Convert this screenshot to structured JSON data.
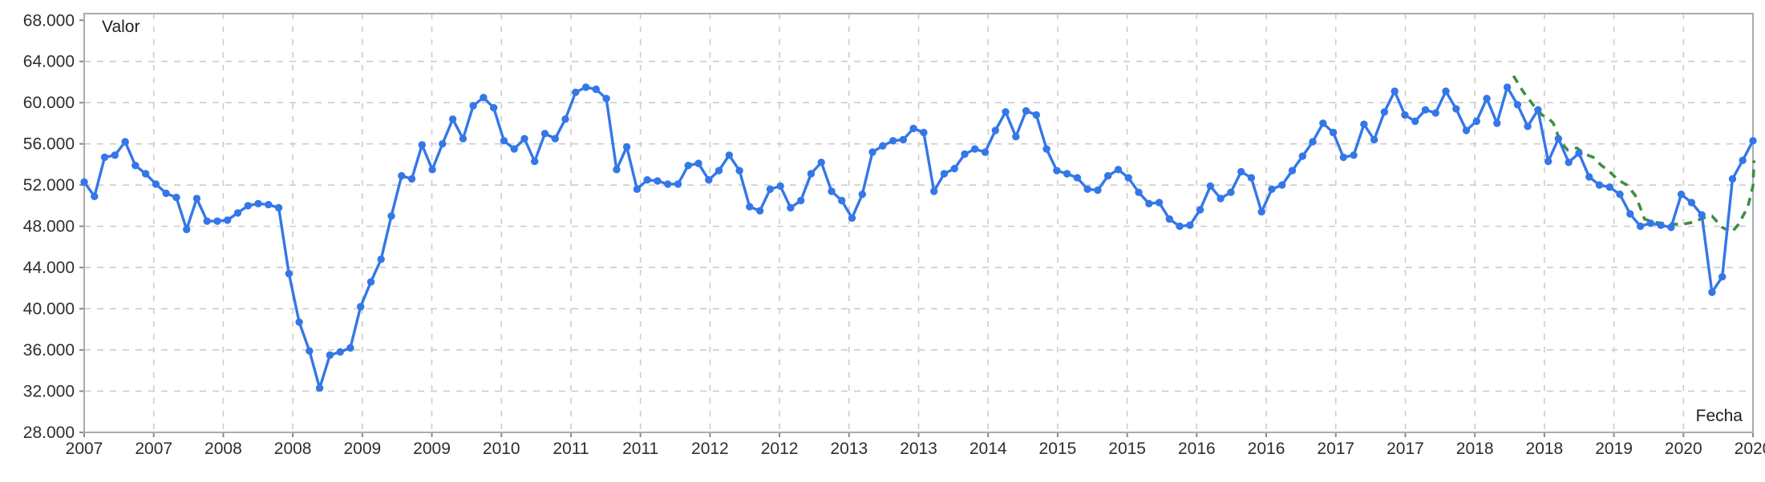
{
  "chart_data": {
    "type": "line",
    "title": "",
    "ylabel": "Valor",
    "xlabel": "Fecha",
    "ylim": [
      28,
      68
    ],
    "grid": true,
    "legend_position": "none",
    "y_tick_values": [
      68,
      64,
      60,
      56,
      52,
      48,
      44,
      40,
      36,
      32,
      28
    ],
    "y_tick_labels": [
      "68.000",
      "64.000",
      "60.000",
      "56.000",
      "52.000",
      "48.000",
      "44.000",
      "40.000",
      "36.000",
      "32.000",
      "28.000"
    ],
    "x_tick_labels": [
      "2007",
      "2007",
      "2008",
      "2008",
      "2009",
      "2009",
      "2010",
      "2011",
      "2011",
      "2012",
      "2012",
      "2013",
      "2013",
      "2014",
      "2015",
      "2015",
      "2016",
      "2016",
      "2017",
      "2017",
      "2018",
      "2018",
      "2019",
      "2020",
      "2020"
    ],
    "x_start": "2007-01",
    "x_frequency": "monthly",
    "series": [
      {
        "name": "valor",
        "style": "solid-with-markers",
        "color": "#3477e8",
        "values": [
          52.3,
          50.9,
          54.7,
          54.9,
          56.2,
          53.9,
          53.1,
          52.1,
          51.2,
          50.8,
          47.7,
          50.7,
          48.5,
          48.5,
          48.6,
          49.3,
          50.0,
          50.2,
          50.1,
          49.8,
          43.4,
          38.7,
          35.9,
          32.3,
          35.5,
          35.8,
          36.2,
          40.2,
          42.6,
          44.8,
          49.0,
          52.9,
          52.6,
          55.9,
          53.5,
          56.0,
          58.4,
          56.5,
          59.7,
          60.5,
          59.5,
          56.3,
          55.5,
          56.5,
          54.3,
          57.0,
          56.5,
          58.4,
          61.0,
          61.5,
          61.3,
          60.4,
          53.5,
          55.7,
          51.6,
          52.5,
          52.4,
          52.1,
          52.1,
          53.9,
          54.1,
          52.5,
          53.4,
          54.9,
          53.4,
          49.9,
          49.5,
          51.6,
          51.9,
          49.8,
          50.5,
          53.1,
          54.2,
          51.4,
          50.5,
          48.8,
          51.1,
          55.2,
          55.8,
          56.3,
          56.4,
          57.5,
          57.1,
          51.4,
          53.1,
          53.6,
          55.0,
          55.5,
          55.2,
          57.3,
          59.1,
          56.7,
          59.2,
          58.8,
          55.5,
          53.4,
          53.1,
          52.7,
          51.6,
          51.5,
          52.9,
          53.5,
          52.7,
          51.3,
          50.2,
          50.3,
          48.7,
          48.0,
          48.1,
          49.6,
          51.9,
          50.7,
          51.3,
          53.3,
          52.7,
          49.4,
          51.6,
          52.0,
          53.4,
          54.8,
          56.2,
          58.0,
          57.1,
          54.7,
          54.9,
          57.9,
          56.4,
          59.1,
          61.1,
          58.8,
          58.2,
          59.3,
          59.0,
          61.1,
          59.4,
          57.3,
          58.2,
          60.4,
          58.0,
          61.5,
          59.8,
          57.7,
          59.3,
          54.3,
          56.5,
          54.2,
          55.1,
          52.8,
          52.0,
          51.8,
          51.1,
          49.2,
          48.0,
          48.3,
          48.1,
          47.9,
          51.1,
          50.3,
          49.1,
          41.6,
          43.1,
          52.6,
          54.4,
          56.3
        ]
      },
      {
        "name": "tendencia",
        "style": "dashed",
        "color": "#3e8e41",
        "points": [
          [
            139.6,
            62.6
          ],
          [
            140.6,
            61.0
          ],
          [
            141.6,
            59.7
          ],
          [
            142.4,
            58.8
          ],
          [
            143.0,
            58.5
          ],
          [
            143.5,
            58.0
          ],
          [
            144.2,
            56.2
          ],
          [
            144.9,
            55.4
          ],
          [
            145.8,
            55.6
          ],
          [
            146.6,
            55.0
          ],
          [
            147.4,
            54.7
          ],
          [
            148.2,
            53.9
          ],
          [
            149.0,
            53.3
          ],
          [
            149.8,
            52.5
          ],
          [
            150.7,
            52.0
          ],
          [
            151.5,
            51.0
          ],
          [
            152.0,
            49.8
          ],
          [
            152.4,
            48.7
          ],
          [
            153.3,
            48.4
          ],
          [
            154.2,
            48.3
          ],
          [
            155.2,
            48.2
          ],
          [
            156.1,
            48.2
          ],
          [
            157.2,
            48.4
          ],
          [
            158.1,
            48.8
          ],
          [
            159.0,
            49.0
          ],
          [
            160.0,
            47.9
          ],
          [
            160.9,
            47.4
          ],
          [
            161.6,
            48.2
          ],
          [
            162.5,
            49.9
          ],
          [
            163.0,
            51.9
          ],
          [
            163.1,
            54.4
          ]
        ]
      }
    ]
  },
  "colors": {
    "series_main": "#3477e8",
    "series_trend": "#3e8e41",
    "gridline": "#cccccc",
    "frame": "#ababab",
    "tick": "#8a8a8a",
    "tick_text": "#2e2e2e",
    "axis_title_text": "#1f1f1f",
    "background": "#ffffff"
  }
}
